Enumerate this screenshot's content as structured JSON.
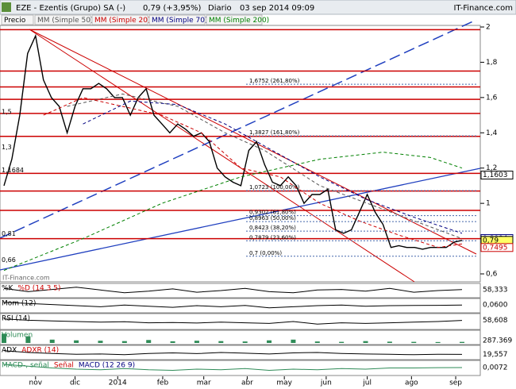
{
  "header": {
    "title": "EZE - Ezentis (Grupo) SA (-)",
    "price": "0,79 (+3,95%)",
    "period": "Diario",
    "date": "03 sep 2014 09:09",
    "brand": "IT-Finance.com"
  },
  "chart_data": {
    "type": "line",
    "watermark": "IT-Finance.com",
    "xlim": [
      0,
      58
    ],
    "ylim": [
      0.6,
      2.0
    ],
    "yticks": [
      2,
      {
        "value": 1.8,
        "label": "1,8"
      },
      {
        "value": 1.6,
        "label": "1,6"
      },
      {
        "value": 1.4,
        "label": "1,4"
      },
      {
        "value": 1.2,
        "label": "1,2"
      },
      1,
      {
        "value": 0.8,
        "label": "0,8"
      },
      {
        "value": 0.6,
        "label": "0,6"
      }
    ],
    "xticks": [
      {
        "value": 4,
        "label": "nov"
      },
      {
        "value": 9,
        "label": "dic"
      },
      {
        "value": 14.4,
        "label": "2014"
      },
      {
        "value": 20.1,
        "label": "feb"
      },
      {
        "value": 25.3,
        "label": "mar"
      },
      {
        "value": 30.8,
        "label": "abr"
      },
      {
        "value": 35.5,
        "label": "may"
      },
      {
        "value": 40.8,
        "label": "jun"
      },
      {
        "value": 46,
        "label": "jul"
      },
      {
        "value": 51.6,
        "label": "ago"
      },
      {
        "value": 57.2,
        "label": "sep"
      }
    ],
    "series": [
      {
        "name": "Precio",
        "color": "#000000",
        "x": [
          0,
          1,
          2,
          3,
          4,
          5,
          6,
          7,
          8,
          9,
          10,
          11,
          12,
          13,
          14,
          15,
          16,
          17,
          18,
          19,
          20,
          21,
          22,
          23,
          24,
          25,
          26,
          27,
          28,
          29,
          30,
          31,
          32,
          33,
          34,
          35,
          36,
          37,
          38,
          39,
          40,
          41,
          42,
          43,
          44,
          45,
          46,
          47,
          48,
          49,
          50,
          51,
          52,
          53,
          54,
          55,
          56,
          57,
          58
        ],
        "values": [
          1.1,
          1.25,
          1.5,
          1.85,
          1.95,
          1.7,
          1.6,
          1.55,
          1.4,
          1.55,
          1.65,
          1.65,
          1.68,
          1.65,
          1.6,
          1.6,
          1.5,
          1.6,
          1.65,
          1.5,
          1.45,
          1.4,
          1.45,
          1.42,
          1.38,
          1.4,
          1.35,
          1.2,
          1.15,
          1.12,
          1.1,
          1.3,
          1.35,
          1.22,
          1.12,
          1.1,
          1.15,
          1.1,
          1.0,
          1.05,
          1.05,
          1.08,
          0.85,
          0.83,
          0.85,
          0.95,
          1.05,
          0.95,
          0.88,
          0.75,
          0.76,
          0.75,
          0.75,
          0.74,
          0.75,
          0.75,
          0.75,
          0.78,
          0.79
        ]
      },
      {
        "name": "MM (Simple 50)",
        "color": "#555555",
        "x": [
          8,
          15,
          22,
          28,
          33,
          40,
          46,
          52,
          58
        ],
        "values": [
          1.55,
          1.62,
          1.55,
          1.4,
          1.3,
          1.1,
          1.0,
          0.9,
          0.8
        ]
      },
      {
        "name": "MM (Simple 20)",
        "color": "#cc0000",
        "x": [
          5,
          10,
          20,
          25,
          30,
          35,
          40,
          45,
          50,
          55,
          58
        ],
        "values": [
          1.5,
          1.6,
          1.5,
          1.4,
          1.2,
          1.15,
          1.0,
          0.9,
          0.82,
          0.75,
          0.77
        ]
      },
      {
        "name": "MM (Simple 70)",
        "color": "#000080",
        "x": [
          10,
          16,
          22,
          28,
          34,
          40,
          46,
          52,
          58
        ],
        "values": [
          1.45,
          1.58,
          1.56,
          1.45,
          1.3,
          1.15,
          1.02,
          0.92,
          0.83
        ]
      },
      {
        "name": "MM (Simple 200)",
        "color": "#008000",
        "x": [
          0,
          10,
          20,
          30,
          40,
          48,
          54,
          58
        ],
        "values": [
          0.62,
          0.8,
          1.0,
          1.15,
          1.25,
          1.29,
          1.26,
          1.2
        ]
      }
    ],
    "levels": [
      1.985,
      1.75,
      1.66,
      1.59,
      1.51,
      1.38,
      1.17,
      1.07,
      0.96,
      0.8
    ],
    "fib_levels": [
      {
        "value": 1.6752,
        "label": "1,6752 (261,80%)"
      },
      {
        "value": 1.3827,
        "label": "1,3827 (161,80%)"
      },
      {
        "value": 1.0723,
        "label": "1,0723 (100,00%)"
      },
      {
        "value": 0.9302,
        "label": "0,9302 (61,80%)"
      },
      {
        "value": 0.8963,
        "label": "0,8963 (50,00%)"
      },
      {
        "value": 0.8423,
        "label": "0,8423 (38,20%)"
      },
      {
        "value": 0.7879,
        "label": "0,7879 (23,60%)"
      },
      {
        "value": 0.7,
        "label": "0,7 (0,00%)"
      }
    ],
    "left_labels": [
      {
        "value": 1.5,
        "label": "1,5"
      },
      {
        "value": 1.3,
        "label": "1,3"
      },
      {
        "value": 1.1684,
        "label": "1,1684"
      },
      {
        "value": 0.81,
        "label": "0,81"
      },
      {
        "value": 0.66,
        "label": "0,66"
      }
    ],
    "right_labels": [
      {
        "value": 1.1603,
        "label": "1,1603",
        "color": "#000000"
      },
      {
        "value": 0.8004,
        "label": "0,8004",
        "color": "#000080"
      },
      {
        "value": 0.79,
        "label": "0,79",
        "color": "#000000"
      },
      {
        "value": 0.7495,
        "label": "0,7495",
        "color": "#cc0000"
      }
    ]
  },
  "panels": [
    {
      "names": [
        "%K",
        "%D (14 3 5)"
      ],
      "colors": [
        "#000000",
        "#cc0000"
      ],
      "last": {
        "value": 58.333,
        "label": "58,333"
      },
      "ylim": [
        0,
        100
      ],
      "values": [
        70,
        40,
        60,
        80,
        55,
        30,
        45,
        65,
        35,
        50,
        70,
        40,
        30,
        55,
        60,
        45,
        70,
        35,
        50,
        58.333
      ]
    },
    {
      "names": [
        "Mom (12)"
      ],
      "colors": [
        "#000000"
      ],
      "last": {
        "value": 0.06,
        "label": "0,0600"
      },
      "ylim": [
        -0.5,
        0.5
      ],
      "values": [
        0.3,
        0.2,
        0.1,
        0.0,
        -0.1,
        0.05,
        -0.05,
        -0.15,
        0.0,
        -0.1,
        0.02,
        -0.2,
        -0.1,
        0.0,
        0.05,
        -0.05,
        0.0,
        0.02,
        0.03,
        0.06
      ]
    },
    {
      "names": [
        "RSI (14)"
      ],
      "colors": [
        "#000000"
      ],
      "last": {
        "value": 58.608,
        "label": "58,608"
      },
      "ylim": [
        0,
        100
      ],
      "values": [
        70,
        60,
        55,
        50,
        45,
        48,
        40,
        42,
        38,
        45,
        40,
        35,
        50,
        30,
        40,
        35,
        40,
        45,
        50,
        58.608
      ]
    },
    {
      "names": [
        "Volumen"
      ],
      "colors": [
        "#2e8b57"
      ],
      "last": {
        "value": 287.369,
        "label": "287.369"
      },
      "ylim": [
        0,
        3000
      ],
      "type": "bar",
      "values": [
        2500,
        1800,
        900,
        700,
        600,
        500,
        800,
        450,
        600,
        500,
        400,
        700,
        900,
        400,
        300,
        500,
        350,
        300,
        250,
        287.369
      ]
    },
    {
      "names": [
        "ADX",
        "ADXR (14)"
      ],
      "colors": [
        "#000000",
        "#cc0000"
      ],
      "last": {
        "value": 19.557,
        "label": "19,557"
      },
      "ylim": [
        0,
        60
      ],
      "values": [
        40,
        30,
        25,
        20,
        22,
        18,
        25,
        28,
        24,
        30,
        26,
        22,
        28,
        30,
        25,
        22,
        20,
        18,
        20,
        19.557
      ]
    },
    {
      "names": [
        "MACD-, señal",
        "Señal",
        "MACD (12 26 9)"
      ],
      "colors": [
        "#2e8b57",
        "#cc0000",
        "#000080"
      ],
      "last": {
        "value": 0.0072,
        "label": "0,0072"
      },
      "ylim": [
        -0.1,
        0.1
      ],
      "values": [
        0.06,
        0.03,
        0.0,
        -0.02,
        -0.03,
        -0.01,
        -0.03,
        -0.04,
        -0.02,
        -0.03,
        -0.01,
        -0.04,
        -0.02,
        -0.03,
        -0.01,
        -0.02,
        0.0,
        0.0,
        0.005,
        0.0072
      ]
    }
  ]
}
